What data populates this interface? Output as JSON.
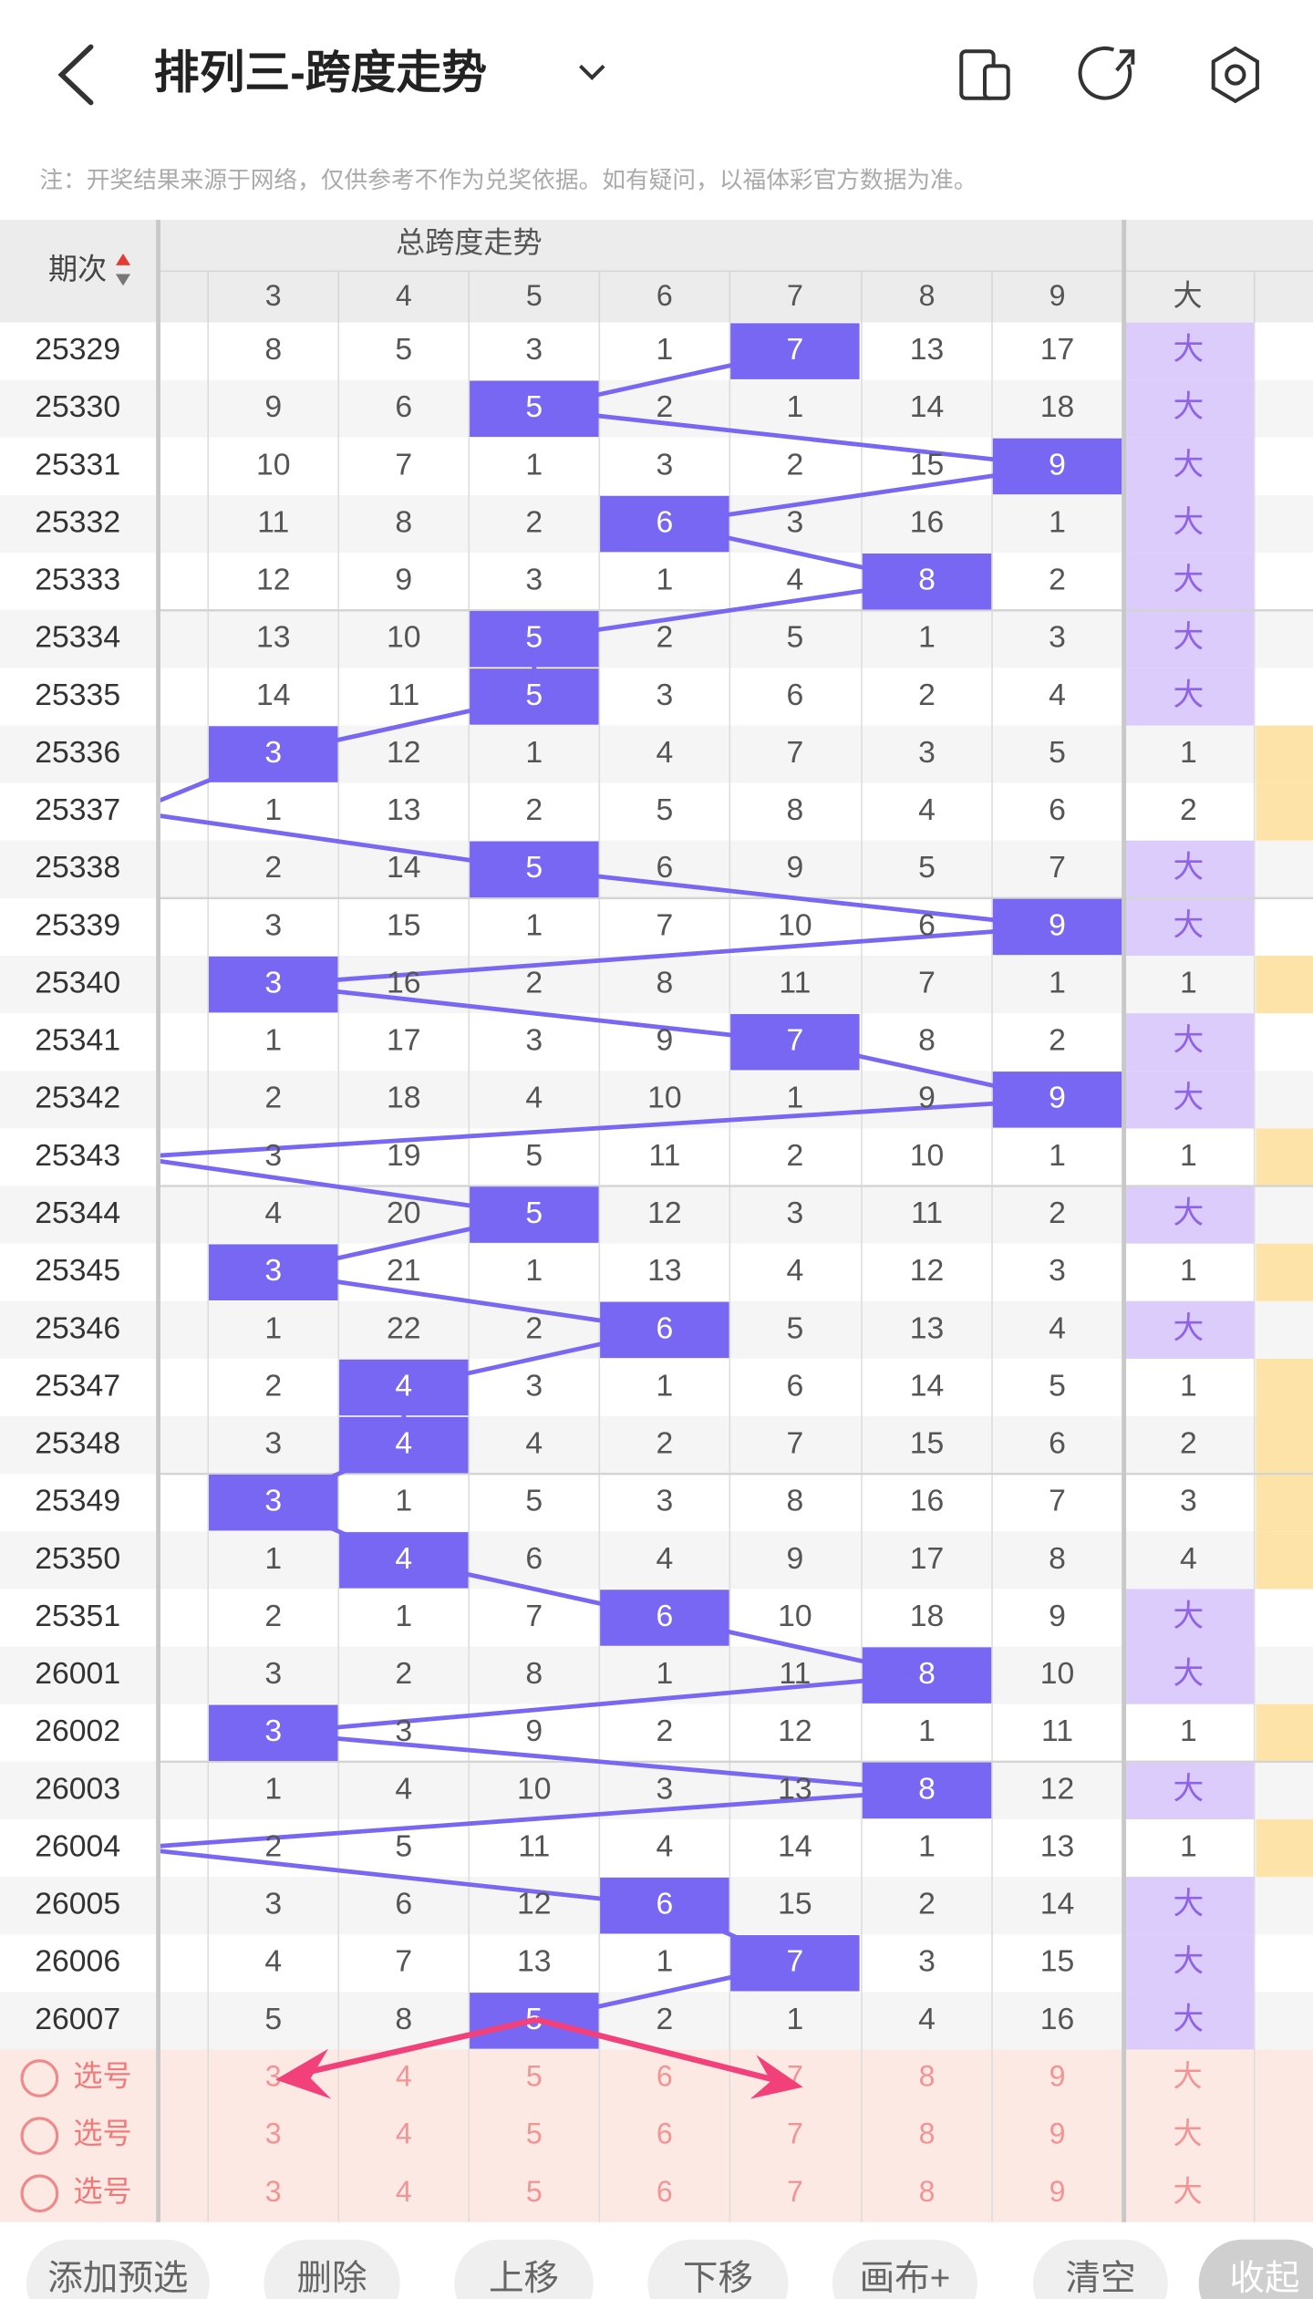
{
  "header": {
    "title": "排列三-跨度走势"
  },
  "note": "注：开奖结果来源于网络，仅供参考不作为兑奖依据。如有疑问，以福体彩官方数据为准。",
  "table": {
    "period_header": "期次",
    "group_header": "总跨度走势",
    "columns": [
      "3",
      "4",
      "5",
      "6",
      "7",
      "8",
      "9",
      "大"
    ],
    "rows": [
      {
        "issue": "25329",
        "cells": [
          "8",
          "5",
          "3",
          "1",
          null,
          "13",
          "17"
        ],
        "span": "7",
        "size": "大"
      },
      {
        "issue": "25330",
        "cells": [
          "9",
          "6",
          null,
          "2",
          "1",
          "14",
          "18"
        ],
        "span": "5",
        "size": "大"
      },
      {
        "issue": "25331",
        "cells": [
          "10",
          "7",
          "1",
          "3",
          "2",
          "15",
          null
        ],
        "span": "9",
        "size": "大"
      },
      {
        "issue": "25332",
        "cells": [
          "11",
          "8",
          "2",
          null,
          "3",
          "16",
          "1"
        ],
        "span": "6",
        "size": "大"
      },
      {
        "issue": "25333",
        "cells": [
          "12",
          "9",
          "3",
          "1",
          "4",
          null,
          "2"
        ],
        "span": "8",
        "size": "大"
      },
      {
        "issue": "25334",
        "cells": [
          "13",
          "10",
          null,
          "2",
          "5",
          "1",
          "3"
        ],
        "span": "5",
        "size": "大"
      },
      {
        "issue": "25335",
        "cells": [
          "14",
          "11",
          null,
          "3",
          "6",
          "2",
          "4"
        ],
        "span": "5",
        "size": "大"
      },
      {
        "issue": "25336",
        "cells": [
          null,
          "12",
          "1",
          "4",
          "7",
          "3",
          "5"
        ],
        "span": "3",
        "size": "1"
      },
      {
        "issue": "25337",
        "cells": [
          "1",
          "13",
          "2",
          "5",
          "8",
          "4",
          "6"
        ],
        "span": null,
        "size": "2"
      },
      {
        "issue": "25338",
        "cells": [
          "2",
          "14",
          null,
          "6",
          "9",
          "5",
          "7"
        ],
        "span": "5",
        "size": "大"
      },
      {
        "issue": "25339",
        "cells": [
          "3",
          "15",
          "1",
          "7",
          "10",
          "6",
          null
        ],
        "span": "9",
        "size": "大"
      },
      {
        "issue": "25340",
        "cells": [
          null,
          "16",
          "2",
          "8",
          "11",
          "7",
          "1"
        ],
        "span": "3",
        "size": "1"
      },
      {
        "issue": "25341",
        "cells": [
          "1",
          "17",
          "3",
          "9",
          null,
          "8",
          "2"
        ],
        "span": "7",
        "size": "大"
      },
      {
        "issue": "25342",
        "cells": [
          "2",
          "18",
          "4",
          "10",
          "1",
          "9",
          null
        ],
        "span": "9",
        "size": "大"
      },
      {
        "issue": "25343",
        "cells": [
          "3",
          "19",
          "5",
          "11",
          "2",
          "10",
          "1"
        ],
        "span": null,
        "size": "1"
      },
      {
        "issue": "25344",
        "cells": [
          "4",
          "20",
          null,
          "12",
          "3",
          "11",
          "2"
        ],
        "span": "5",
        "size": "大"
      },
      {
        "issue": "25345",
        "cells": [
          null,
          "21",
          "1",
          "13",
          "4",
          "12",
          "3"
        ],
        "span": "3",
        "size": "1"
      },
      {
        "issue": "25346",
        "cells": [
          "1",
          "22",
          "2",
          null,
          "5",
          "13",
          "4"
        ],
        "span": "6",
        "size": "大"
      },
      {
        "issue": "25347",
        "cells": [
          "2",
          null,
          "3",
          "1",
          "6",
          "14",
          "5"
        ],
        "span": "4",
        "size": "1"
      },
      {
        "issue": "25348",
        "cells": [
          "3",
          null,
          "4",
          "2",
          "7",
          "15",
          "6"
        ],
        "span": "4",
        "size": "2"
      },
      {
        "issue": "25349",
        "cells": [
          null,
          "1",
          "5",
          "3",
          "8",
          "16",
          "7"
        ],
        "span": "3",
        "size": "3"
      },
      {
        "issue": "25350",
        "cells": [
          "1",
          null,
          "6",
          "4",
          "9",
          "17",
          "8"
        ],
        "span": "4",
        "size": "4"
      },
      {
        "issue": "25351",
        "cells": [
          "2",
          "1",
          "7",
          null,
          "10",
          "18",
          "9"
        ],
        "span": "6",
        "size": "大"
      },
      {
        "issue": "26001",
        "cells": [
          "3",
          "2",
          "8",
          "1",
          "11",
          null,
          "10"
        ],
        "span": "8",
        "size": "大"
      },
      {
        "issue": "26002",
        "cells": [
          null,
          "3",
          "9",
          "2",
          "12",
          "1",
          "11"
        ],
        "span": "3",
        "size": "1"
      },
      {
        "issue": "26003",
        "cells": [
          "1",
          "4",
          "10",
          "3",
          "13",
          null,
          "12"
        ],
        "span": "8",
        "size": "大"
      },
      {
        "issue": "26004",
        "cells": [
          "2",
          "5",
          "11",
          "4",
          "14",
          "1",
          "13"
        ],
        "span": null,
        "size": "1"
      },
      {
        "issue": "26005",
        "cells": [
          "3",
          "6",
          "12",
          null,
          "15",
          "2",
          "14"
        ],
        "span": "6",
        "size": "大"
      },
      {
        "issue": "26006",
        "cells": [
          "4",
          "7",
          "13",
          "1",
          null,
          "3",
          "15"
        ],
        "span": "7",
        "size": "大"
      },
      {
        "issue": "26007",
        "cells": [
          "5",
          "8",
          null,
          "2",
          "1",
          "4",
          "16"
        ],
        "span": "5",
        "size": "大"
      }
    ],
    "pick_rows": [
      {
        "label": "选号",
        "cells": [
          "3",
          "4",
          "5",
          "6",
          "7",
          "8",
          "9",
          "大"
        ]
      },
      {
        "label": "选号",
        "cells": [
          "3",
          "4",
          "5",
          "6",
          "7",
          "8",
          "9",
          "大"
        ]
      },
      {
        "label": "选号",
        "cells": [
          "3",
          "4",
          "5",
          "6",
          "7",
          "8",
          "9",
          "大"
        ]
      }
    ]
  },
  "toolbar": {
    "buttons": [
      "添加预选",
      "删除",
      "上移",
      "下移",
      "画布+",
      "清空",
      "收起"
    ]
  }
}
